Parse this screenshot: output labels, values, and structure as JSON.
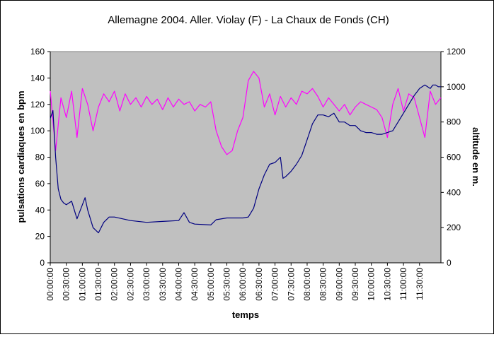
{
  "chart_data": {
    "type": "line",
    "title": "Allemagne 2004. Aller. Violay (F) - La Chaux de Fonds (CH)",
    "xlabel": "temps",
    "ylabel": "pulsations cardiaques en bpm",
    "y2label": "altitude en m.",
    "ylim": [
      0,
      160
    ],
    "y2lim": [
      0,
      1200
    ],
    "yticks": [
      "0",
      "20",
      "40",
      "60",
      "80",
      "100",
      "120",
      "140",
      "160"
    ],
    "y2ticks": [
      "0",
      "200",
      "400",
      "600",
      "800",
      "1000",
      "1200"
    ],
    "xlim_minutes": [
      0,
      730
    ],
    "xticks": [
      "00:00:00",
      "00:30:00",
      "01:00:00",
      "01:30:00",
      "02:00:00",
      "02:30:00",
      "03:00:00",
      "03:30:00",
      "04:00:00",
      "04:30:00",
      "05:00:00",
      "05:30:00",
      "06:00:00",
      "06:30:00",
      "07:00:00",
      "07:30:00",
      "08:00:00",
      "08:30:00",
      "09:00:00",
      "09:30:00",
      "10:00:00",
      "10:30:00",
      "11:00:00",
      "11:30:00"
    ],
    "grid": false,
    "legend": "none",
    "plot_background": "#c0c0c0",
    "series": [
      {
        "axis": "left",
        "color": "#ff00ff",
        "x": [
          "00:00:00",
          "00:10:00",
          "00:20:00",
          "00:30:00",
          "00:40:00",
          "00:50:00",
          "01:00:00",
          "01:10:00",
          "01:20:00",
          "01:30:00",
          "01:40:00",
          "01:50:00",
          "02:00:00",
          "02:10:00",
          "02:20:00",
          "02:30:00",
          "02:40:00",
          "02:50:00",
          "03:00:00",
          "03:10:00",
          "03:20:00",
          "03:30:00",
          "03:40:00",
          "03:50:00",
          "04:00:00",
          "04:10:00",
          "04:20:00",
          "04:30:00",
          "04:40:00",
          "04:50:00",
          "05:00:00",
          "05:10:00",
          "05:20:00",
          "05:30:00",
          "05:40:00",
          "05:50:00",
          "06:00:00",
          "06:10:00",
          "06:20:00",
          "06:30:00",
          "06:40:00",
          "06:50:00",
          "07:00:00",
          "07:10:00",
          "07:20:00",
          "07:30:00",
          "07:40:00",
          "07:50:00",
          "08:00:00",
          "08:10:00",
          "08:20:00",
          "08:30:00",
          "08:40:00",
          "08:50:00",
          "09:00:00",
          "09:10:00",
          "09:20:00",
          "09:30:00",
          "09:40:00",
          "09:50:00",
          "10:00:00",
          "10:10:00",
          "10:20:00",
          "10:30:00",
          "10:40:00",
          "10:50:00",
          "11:00:00",
          "11:10:00",
          "11:20:00",
          "11:30:00",
          "11:40:00",
          "11:50:00",
          "12:00:00",
          "12:10:00"
        ],
        "y": [
          130,
          85,
          125,
          110,
          130,
          95,
          132,
          120,
          100,
          118,
          128,
          122,
          130,
          115,
          128,
          120,
          125,
          118,
          126,
          120,
          124,
          116,
          125,
          118,
          124,
          120,
          122,
          115,
          120,
          118,
          122,
          100,
          88,
          82,
          85,
          100,
          110,
          138,
          145,
          140,
          118,
          128,
          112,
          126,
          118,
          125,
          120,
          130,
          128,
          132,
          126,
          118,
          125,
          120,
          115,
          120,
          112,
          118,
          122,
          120,
          118,
          116,
          110,
          95,
          120,
          132,
          115,
          128,
          125,
          110,
          95,
          130,
          120,
          125
        ]
      },
      {
        "axis": "right",
        "color": "#000080",
        "x": [
          "00:00:00",
          "00:05:00",
          "00:10:00",
          "00:15:00",
          "00:20:00",
          "00:25:00",
          "00:30:00",
          "00:40:00",
          "00:50:00",
          "01:00:00",
          "01:05:00",
          "01:10:00",
          "01:20:00",
          "01:30:00",
          "01:40:00",
          "01:50:00",
          "02:00:00",
          "02:30:00",
          "03:00:00",
          "03:30:00",
          "04:00:00",
          "04:10:00",
          "04:20:00",
          "04:30:00",
          "05:00:00",
          "05:10:00",
          "05:30:00",
          "06:00:00",
          "06:10:00",
          "06:20:00",
          "06:30:00",
          "06:40:00",
          "06:50:00",
          "07:00:00",
          "07:10:00",
          "07:15:00",
          "07:20:00",
          "07:30:00",
          "07:40:00",
          "07:50:00",
          "08:00:00",
          "08:10:00",
          "08:20:00",
          "08:30:00",
          "08:40:00",
          "08:50:00",
          "09:00:00",
          "09:10:00",
          "09:20:00",
          "09:30:00",
          "09:40:00",
          "09:50:00",
          "10:00:00",
          "10:10:00",
          "10:20:00",
          "10:30:00",
          "10:40:00",
          "10:50:00",
          "11:00:00",
          "11:10:00",
          "11:20:00",
          "11:30:00",
          "11:35:00",
          "11:40:00",
          "11:45:00",
          "11:50:00",
          "11:55:00",
          "12:00:00",
          "12:05:00",
          "12:10:00"
        ],
        "y": [
          820,
          865,
          600,
          420,
          360,
          340,
          330,
          350,
          250,
          330,
          370,
          300,
          200,
          170,
          230,
          260,
          260,
          240,
          230,
          235,
          240,
          285,
          230,
          220,
          215,
          245,
          255,
          255,
          260,
          310,
          420,
          500,
          560,
          570,
          600,
          480,
          490,
          520,
          560,
          610,
          700,
          790,
          840,
          840,
          830,
          850,
          800,
          800,
          780,
          780,
          750,
          740,
          740,
          730,
          730,
          740,
          750,
          800,
          850,
          900,
          950,
          990,
          1000,
          1010,
          1000,
          990,
          1010,
          1010,
          1000,
          1000
        ]
      }
    ]
  }
}
